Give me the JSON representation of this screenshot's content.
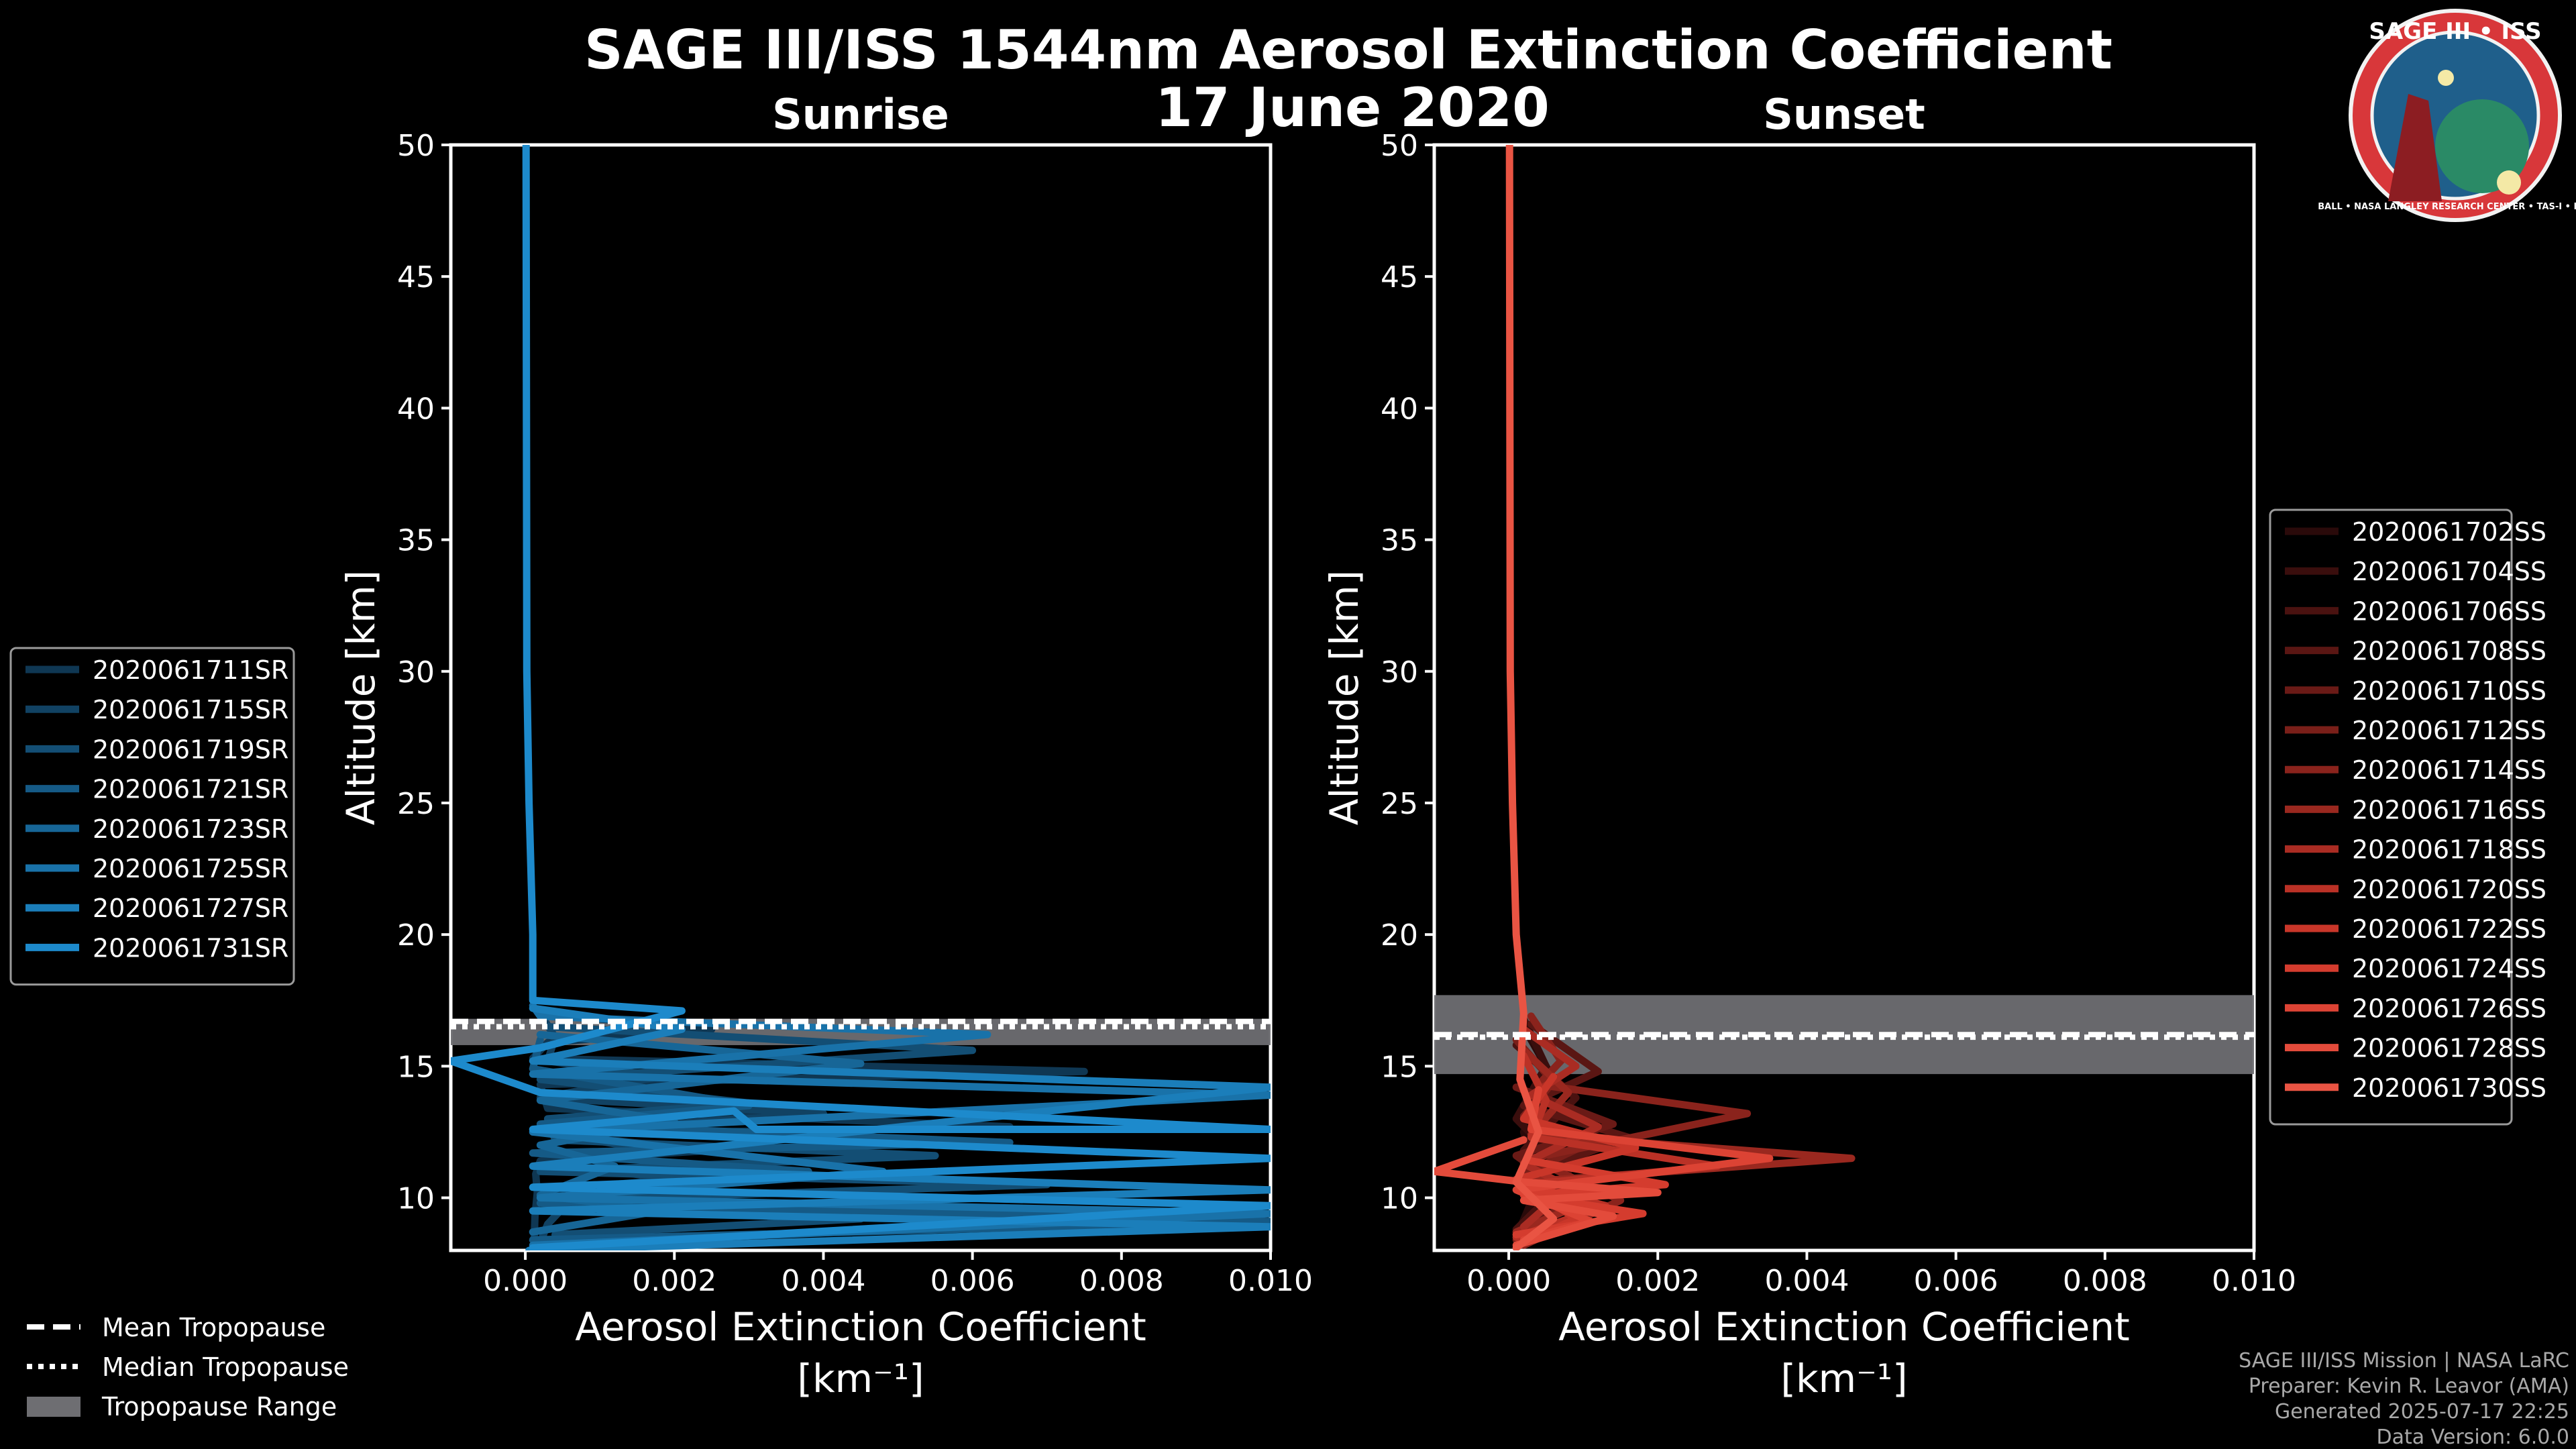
{
  "title": "SAGE III/ISS 1544nm Aerosol Extinction Coefficient",
  "date": "17 June 2020",
  "logo": {
    "text_top": "SAGE III • ISS",
    "text_ring": "BALL • NASA LANGLEY RESEARCH CENTER • TAS-I • ESA",
    "ring_color": "#d8373a",
    "inner_color": "#1f5f8b"
  },
  "credits": {
    "line1": "SAGE III/ISS Mission | NASA LaRC",
    "line2": "Preparer: Kevin R. Leavor (AMA)",
    "line3": "Generated 2025-07-17 22:25",
    "line4": "Data Version: 6.0.0"
  },
  "tropo_legend": {
    "mean": "Mean Tropopause",
    "median": "Median Tropopause",
    "range": "Tropopause Range"
  },
  "chart_data": [
    {
      "type": "line",
      "title": "Sunrise",
      "xlabel": "Aerosol Extinction Coefficient",
      "xlabel_units": "[km⁻¹]",
      "ylabel": "Altitude [km]",
      "xlim": [
        -0.001,
        0.01
      ],
      "ylim": [
        8,
        50
      ],
      "xticks": [
        0.0,
        0.002,
        0.004,
        0.006,
        0.008,
        0.01
      ],
      "xtick_labels": [
        "0.000",
        "0.002",
        "0.004",
        "0.006",
        "0.008",
        "0.010"
      ],
      "yticks": [
        10,
        15,
        20,
        25,
        30,
        35,
        40,
        45,
        50
      ],
      "tropopause": {
        "mean": 16.7,
        "median": 16.5,
        "range": [
          15.8,
          16.8
        ]
      },
      "colors": [
        "#0f3753",
        "#114263",
        "#134e74",
        "#155a86",
        "#176697",
        "#1972a9",
        "#1b7eba",
        "#1d8acc"
      ],
      "series": [
        {
          "name": "2020061711SR",
          "x": [
            0.00012,
            0.00013,
            0.00016,
            0.00014,
            0.0002,
            0.0025,
            0.0004,
            0.0065,
            0.0003,
            0.0002,
            0.0075,
            0.0001,
            0.0003,
            0.0025,
            0.0002
          ],
          "y": [
            8.5,
            9.3,
            10.2,
            10.9,
            11.4,
            11.8,
            12.4,
            12.7,
            13.4,
            14.3,
            14.8,
            15.3,
            15.9,
            16.4,
            17.0
          ]
        },
        {
          "name": "2020061715SR",
          "x": [
            0.0002,
            0.0003,
            0.0005,
            0.0003,
            0.002,
            0.0004,
            0.0015,
            0.0003,
            0.004,
            0.0002,
            0.0018,
            0.0003,
            0.0004,
            0.0002
          ],
          "y": [
            8.3,
            9.0,
            9.6,
            10.3,
            10.7,
            11.3,
            11.9,
            12.5,
            13.2,
            13.8,
            14.6,
            15.2,
            16.1,
            17.0
          ]
        },
        {
          "name": "2020061719SR",
          "x": [
            0.0004,
            0.0045,
            0.0003,
            0.007,
            0.0002,
            0.0055,
            0.0004,
            0.0003,
            0.003,
            0.0002,
            0.006,
            0.0003
          ],
          "y": [
            8.6,
            9.2,
            9.9,
            10.5,
            11.0,
            11.6,
            12.2,
            13.0,
            13.6,
            14.5,
            15.6,
            16.5
          ]
        },
        {
          "name": "2020061721SR",
          "x": [
            0.0001,
            0.01,
            0.0002,
            0.0038,
            0.0001,
            0.0065,
            0.0002,
            0.003,
            0.0001,
            0.0002
          ],
          "y": [
            8.4,
            9.1,
            9.8,
            11.0,
            11.7,
            12.1,
            12.8,
            13.5,
            14.9,
            16.0
          ]
        },
        {
          "name": "2020061723SR",
          "x": [
            0.0001,
            0.0018,
            0.0002,
            0.0012,
            0.0002,
            0.002,
            0.0002,
            0.0045,
            0.0002
          ],
          "y": [
            8.7,
            9.5,
            10.1,
            11.2,
            12.0,
            12.9,
            13.7,
            15.1,
            16.2
          ]
        },
        {
          "name": "2020061725SR",
          "x": [
            0.0001,
            0.01,
            0.0002,
            0.0048,
            0.0001,
            0.01,
            0.0001,
            0.0062,
            0.0002,
            0.0001
          ],
          "y": [
            8.2,
            9.4,
            10.0,
            11.0,
            12.5,
            13.9,
            14.7,
            16.2,
            16.9,
            17.3
          ]
        },
        {
          "name": "2020061727SR",
          "x": [
            5e-05,
            0.01,
            0.0001,
            0.01,
            0.0001,
            0.01,
            0.0001,
            0.0021,
            0.0001
          ],
          "y": [
            8.0,
            8.9,
            9.5,
            10.3,
            11.2,
            14.2,
            15.2,
            16.4,
            17.2
          ]
        },
        {
          "name": "2020061731SR",
          "x": [
            0.0001,
            0.01,
            0.0001,
            0.01,
            0.0001,
            0.0028,
            0.0031,
            0.01,
            0.0002,
            -0.001,
            0.0002,
            0.0021,
            0.0001,
            0.0001,
            5e-05,
            2e-05,
            1e-05
          ],
          "y": [
            8.1,
            9.7,
            10.4,
            11.5,
            12.6,
            13.3,
            12.6,
            12.6,
            14.0,
            15.2,
            15.7,
            17.1,
            17.5,
            20.0,
            25.0,
            30.0,
            50.0
          ]
        }
      ]
    },
    {
      "type": "line",
      "title": "Sunset",
      "xlabel": "Aerosol Extinction Coefficient",
      "xlabel_units": "[km⁻¹]",
      "ylabel": "Altitude [km]",
      "xlim": [
        -0.001,
        0.01
      ],
      "ylim": [
        8,
        50
      ],
      "xticks": [
        0.0,
        0.002,
        0.004,
        0.006,
        0.008,
        0.01
      ],
      "xtick_labels": [
        "0.000",
        "0.002",
        "0.004",
        "0.006",
        "0.008",
        "0.010"
      ],
      "yticks": [
        10,
        15,
        20,
        25,
        30,
        35,
        40,
        45,
        50
      ],
      "tropopause": {
        "mean": 16.2,
        "median": 16.1,
        "range": [
          14.7,
          17.7
        ]
      },
      "colors": [
        "#2a0a0a",
        "#3a0e0d",
        "#4a1210",
        "#5a1613",
        "#6a1a16",
        "#7a1f19",
        "#8a231c",
        "#9a281f",
        "#aa2c23",
        "#ba3126",
        "#c93629",
        "#d43c2e",
        "#dc4334",
        "#e34b3b",
        "#e95443"
      ],
      "series": [
        {
          "name": "2020061702SS",
          "x": [
            0.0001,
            0.0004,
            0.0002,
            0.0006,
            0.0002
          ],
          "y": [
            8.5,
            10.5,
            12.5,
            14.5,
            16.5
          ]
        },
        {
          "name": "2020061704SS",
          "x": [
            0.0002,
            0.0008,
            0.0001,
            0.0005,
            0.0002
          ],
          "y": [
            9.0,
            11.0,
            13.0,
            15.0,
            16.8
          ]
        },
        {
          "name": "2020061706SS",
          "x": [
            0.0001,
            0.0006,
            0.0002,
            0.0009,
            0.0001
          ],
          "y": [
            8.8,
            10.2,
            11.8,
            13.8,
            15.8
          ]
        },
        {
          "name": "2020061708SS",
          "x": [
            0.0002,
            0.0012,
            0.0002,
            0.0016,
            0.0002,
            0.0012,
            0.0003
          ],
          "y": [
            8.3,
            9.5,
            10.8,
            12.3,
            13.5,
            14.8,
            16.6
          ]
        },
        {
          "name": "2020061710SS",
          "x": [
            0.0001,
            0.0009,
            0.0001,
            0.0014,
            0.0001
          ],
          "y": [
            8.6,
            10.0,
            11.6,
            12.8,
            14.2
          ]
        },
        {
          "name": "2020061712SS",
          "x": [
            0.0001,
            0.0007,
            0.0002,
            0.0011,
            0.0002,
            0.0006,
            0.0001
          ],
          "y": [
            8.4,
            9.6,
            10.9,
            12.1,
            13.1,
            14.4,
            16.0
          ]
        },
        {
          "name": "2020061714SS",
          "x": [
            0.0002,
            0.0015,
            0.0003,
            0.0032,
            0.0004,
            0.0007,
            0.0003
          ],
          "y": [
            8.2,
            9.9,
            11.5,
            13.2,
            14.3,
            15.2,
            16.9
          ]
        },
        {
          "name": "2020061716SS",
          "x": [
            0.0001,
            0.001,
            0.0002,
            0.0046,
            0.0003,
            0.0008,
            0.0002
          ],
          "y": [
            8.7,
            9.8,
            10.6,
            11.5,
            12.4,
            14.0,
            15.6
          ]
        },
        {
          "name": "2020061718SS",
          "x": [
            0.0002,
            0.0008,
            0.0002,
            0.0012,
            0.0003,
            0.0009,
            0.0002
          ],
          "y": [
            8.9,
            10.4,
            11.3,
            12.7,
            13.9,
            15.0,
            16.4
          ]
        },
        {
          "name": "2020061720SS",
          "x": [
            0.0001,
            0.0013,
            0.0002,
            0.0028,
            0.0003,
            0.0005,
            0.0002
          ],
          "y": [
            8.5,
            9.7,
            10.5,
            11.2,
            12.3,
            13.7,
            15.4
          ]
        },
        {
          "name": "2020061722SS",
          "x": [
            0.0002,
            0.0009,
            0.0001,
            0.0017,
            0.0002,
            0.0006
          ],
          "y": [
            8.3,
            9.2,
            10.7,
            11.9,
            13.0,
            14.6
          ]
        },
        {
          "name": "2020061724SS",
          "x": [
            0.0001,
            0.0018,
            0.0002,
            0.0021,
            0.0003
          ],
          "y": [
            8.6,
            9.4,
            10.1,
            10.5,
            11.4
          ]
        },
        {
          "name": "2020061726SS",
          "x": [
            0.0002,
            0.0011,
            0.0001,
            0.0035,
            0.0003,
            0.0004
          ],
          "y": [
            8.4,
            9.1,
            10.3,
            11.5,
            12.6,
            14.1
          ]
        },
        {
          "name": "2020061728SS",
          "x": [
            0.0001,
            0.0014,
            0.0002,
            0.002,
            0.0002,
            -0.001,
            0.0002
          ],
          "y": [
            8.2,
            9.3,
            9.9,
            10.2,
            10.6,
            11.0,
            12.2
          ]
        },
        {
          "name": "2020061730SS",
          "x": [
            0.0001,
            0.0006,
            0.0001,
            0.0004,
            0.00015,
            0.0002,
            0.0001,
            5e-05,
            2e-05,
            1e-05
          ],
          "y": [
            8.1,
            9.2,
            10.6,
            12.5,
            14.5,
            17.0,
            20.0,
            25.0,
            30.0,
            50.0
          ]
        }
      ]
    }
  ]
}
